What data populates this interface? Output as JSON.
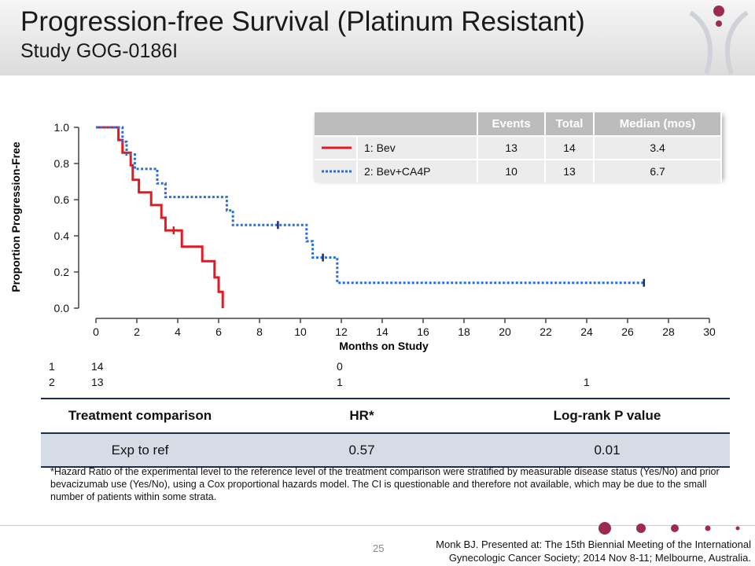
{
  "header": {
    "title": "Progression-free Survival (Platinum Resistant)",
    "subtitle": "Study GOG-0186I"
  },
  "colors": {
    "bev": "#e01b24",
    "bev_ca4p": "#2a6fd6",
    "logo": "#9b2a55",
    "table_header": "#bcbcbc",
    "table_row": "#d6dce6"
  },
  "chart_data": {
    "type": "line",
    "subtype": "kaplan-meier",
    "xlabel": "Months on Study",
    "ylabel": "Proportion Progression-Free",
    "xlim": [
      0,
      30
    ],
    "ylim": [
      0,
      1
    ],
    "x_ticks": [
      "0",
      "2",
      "4",
      "6",
      "8",
      "10",
      "12",
      "14",
      "16",
      "18",
      "20",
      "22",
      "24",
      "26",
      "28",
      "30"
    ],
    "y_ticks": [
      "0.0",
      "0.2",
      "0.4",
      "0.6",
      "0.8",
      "1.0"
    ],
    "series": [
      {
        "name": "1: Bev",
        "style": "solid",
        "steps": [
          [
            0,
            1.0
          ],
          [
            1.1,
            1.0
          ],
          [
            1.1,
            0.93
          ],
          [
            1.3,
            0.93
          ],
          [
            1.3,
            0.86
          ],
          [
            1.7,
            0.86
          ],
          [
            1.7,
            0.79
          ],
          [
            1.8,
            0.79
          ],
          [
            1.8,
            0.71
          ],
          [
            2.1,
            0.71
          ],
          [
            2.1,
            0.64
          ],
          [
            2.7,
            0.64
          ],
          [
            2.7,
            0.57
          ],
          [
            3.2,
            0.57
          ],
          [
            3.2,
            0.5
          ],
          [
            3.4,
            0.5
          ],
          [
            3.4,
            0.43
          ],
          [
            4.2,
            0.43
          ],
          [
            4.2,
            0.34
          ],
          [
            5.2,
            0.34
          ],
          [
            5.2,
            0.26
          ],
          [
            5.8,
            0.26
          ],
          [
            5.8,
            0.17
          ],
          [
            6.0,
            0.17
          ],
          [
            6.0,
            0.09
          ],
          [
            6.2,
            0.09
          ],
          [
            6.2,
            0.0
          ]
        ],
        "censored": [
          [
            3.8,
            0.43
          ]
        ]
      },
      {
        "name": "2: Bev+CA4P",
        "style": "dotted",
        "steps": [
          [
            0,
            1.0
          ],
          [
            1.3,
            1.0
          ],
          [
            1.3,
            0.92
          ],
          [
            1.5,
            0.92
          ],
          [
            1.5,
            0.85
          ],
          [
            1.9,
            0.85
          ],
          [
            1.9,
            0.77
          ],
          [
            3.0,
            0.77
          ],
          [
            3.0,
            0.69
          ],
          [
            3.4,
            0.69
          ],
          [
            3.4,
            0.615
          ],
          [
            6.4,
            0.615
          ],
          [
            6.4,
            0.54
          ],
          [
            6.7,
            0.54
          ],
          [
            6.7,
            0.46
          ],
          [
            10.3,
            0.46
          ],
          [
            10.3,
            0.37
          ],
          [
            10.6,
            0.37
          ],
          [
            10.6,
            0.28
          ],
          [
            11.8,
            0.28
          ],
          [
            11.8,
            0.14
          ],
          [
            26.8,
            0.14
          ]
        ],
        "censored": [
          [
            8.9,
            0.46
          ],
          [
            11.1,
            0.28
          ],
          [
            26.8,
            0.14
          ]
        ]
      }
    ],
    "legend_table": {
      "headers": [
        "",
        "Events",
        "Total",
        "Median (mos)"
      ],
      "rows": [
        {
          "name": "1: Bev",
          "events": "13",
          "total": "14",
          "median": "3.4"
        },
        {
          "name": "2: Bev+CA4P",
          "events": "10",
          "total": "13",
          "median": "6.7"
        }
      ]
    },
    "at_risk": {
      "rows": [
        {
          "label": "1",
          "values": [
            {
              "x": 0,
              "n": "14"
            },
            {
              "x": 12,
              "n": "0"
            }
          ]
        },
        {
          "label": "2",
          "values": [
            {
              "x": 0,
              "n": "13"
            },
            {
              "x": 12,
              "n": "1"
            },
            {
              "x": 24,
              "n": "1"
            }
          ]
        }
      ]
    }
  },
  "comparison": {
    "headers": [
      "Treatment comparison",
      "HR*",
      "Log-rank P value"
    ],
    "row": [
      "Exp to ref",
      "0.57",
      "0.01"
    ]
  },
  "footnote": "*Hazard Ratio of the experimental level to the reference level of the treatment comparison were stratified by measurable disease status (Yes/No) and prior bevacizumab use (Yes/No), using a Cox proportional hazards model. The CI is questionable and therefore not available, which may be due to the small number of patients within some strata.",
  "footer": {
    "page_number": "25",
    "citation_line1": "Monk BJ.  Presented at: The 15th Biennial Meeting of the International",
    "citation_line2": "Gynecologic Cancer Society; 2014 Nov 8-11; Melbourne, Australia."
  }
}
